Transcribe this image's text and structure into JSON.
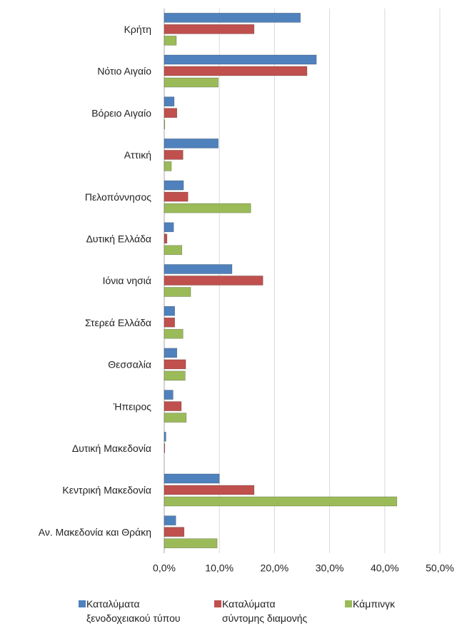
{
  "chart_data": {
    "type": "hbar",
    "categories": [
      "Κρήτη",
      "Νότιο Αιγαίο",
      "Βόρειο Αιγαίο",
      "Αττική",
      "Πελοπόννησος",
      "Δυτική Ελλάδα",
      "Ιόνια νησιά",
      "Στερεά Ελλάδα",
      "Θεσσαλία",
      "Ήπειρος",
      "Δυτική Μακεδονία",
      "Κεντρική Μακεδονία",
      "Αν. Μακεδονία και Θράκη"
    ],
    "series": [
      {
        "name": "Καταλύματα ξενοδοχειακού τύπου",
        "color": "#4f81bd",
        "values": [
          24.7,
          27.6,
          1.8,
          9.8,
          3.5,
          1.7,
          12.3,
          1.9,
          2.3,
          1.6,
          0.3,
          10.0,
          2.1
        ]
      },
      {
        "name": "Καταλύματα σύντομης διαμονής",
        "color": "#c0504d",
        "values": [
          16.3,
          25.9,
          2.3,
          3.4,
          4.3,
          0.5,
          17.9,
          1.9,
          3.9,
          3.1,
          0.1,
          16.3,
          3.6
        ]
      },
      {
        "name": "Κάμπινγκ",
        "color": "#9bbb59",
        "values": [
          2.2,
          9.8,
          0.1,
          1.3,
          15.7,
          3.2,
          4.8,
          3.4,
          3.8,
          4.0,
          0,
          42.2,
          9.6
        ]
      }
    ],
    "xlim": [
      0,
      50
    ],
    "xticks": [
      {
        "value": 0,
        "label": "0,0%"
      },
      {
        "value": 10,
        "label": "10,0%"
      },
      {
        "value": 20,
        "label": "20,0%"
      },
      {
        "value": 30,
        "label": "30,0%"
      },
      {
        "value": 40,
        "label": "40,0%"
      },
      {
        "value": 50,
        "label": "50,0%"
      }
    ],
    "grid": true,
    "legend": "bottom"
  }
}
